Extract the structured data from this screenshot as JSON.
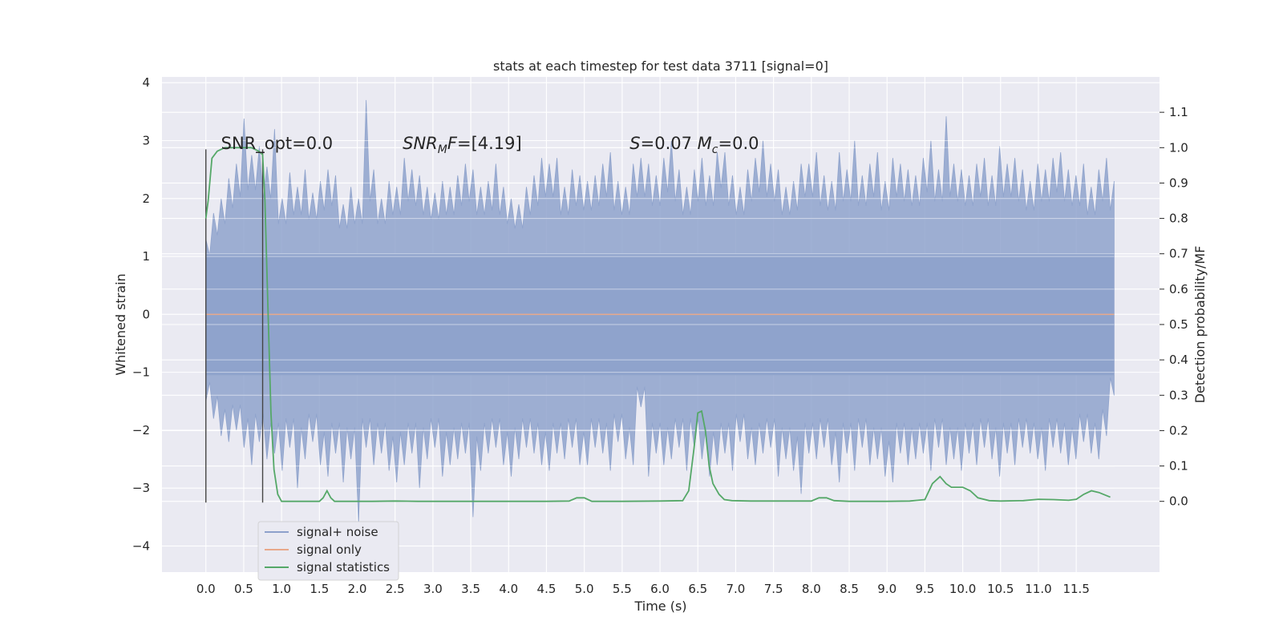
{
  "chart_data": {
    "type": "line",
    "title": "stats at each timestep for test data 3711 [signal=0]",
    "xlabel": "Time (s)",
    "ylabel_left": "Whitened strain",
    "ylabel_right": "Detection probability/MF",
    "xlim": [
      -0.58,
      12.6
    ],
    "ylim_left": [
      -4.45,
      4.1
    ],
    "ylim_right": [
      -0.2,
      1.2
    ],
    "x_ticks": [
      "0.0",
      "0.5",
      "1.0",
      "1.5",
      "2.0",
      "2.5",
      "3.0",
      "3.5",
      "4.0",
      "4.5",
      "5.0",
      "5.5",
      "6.0",
      "6.5",
      "7.0",
      "7.5",
      "8.0",
      "8.5",
      "9.0",
      "9.5",
      "10.0",
      "10.5",
      "11.0",
      "11.5"
    ],
    "y_ticks_left": [
      "4",
      "3",
      "2",
      "1",
      "0",
      "−1",
      "−2",
      "−3",
      "−4"
    ],
    "y_ticks_right": [
      "1.1",
      "1.0",
      "0.9",
      "0.8",
      "0.7",
      "0.6",
      "0.5",
      "0.4",
      "0.3",
      "0.2",
      "0.1",
      "0.0"
    ],
    "grid": true,
    "legend_position": "lower-left",
    "annotations": [
      {
        "text": "SNR_opt=0.0",
        "x": 0.2,
        "y": 2.95
      },
      {
        "text": "SNR_MF=[4.19]",
        "x": 2.6,
        "y": 2.95
      },
      {
        "text": "S=0.07   M_c=0.0",
        "x": 5.6,
        "y": 2.95
      }
    ],
    "vlines": [
      {
        "x": 0.0,
        "ymin": -3.25,
        "ymax": 2.85
      },
      {
        "x": 0.75,
        "ymin": -3.25,
        "ymax": 2.85
      }
    ],
    "noise_band": {
      "name": "signal+ noise",
      "x_range": [
        0.0,
        12.0
      ],
      "core_high": 1.05,
      "core_low": -1.05,
      "upper_envelope": [
        1.3,
        1.75,
        2.0,
        2.35,
        2.6,
        3.38,
        2.75,
        2.9,
        2.55,
        3.2,
        2.0,
        2.45,
        2.2,
        2.5,
        2.1,
        2.3,
        2.5,
        2.4,
        1.9,
        2.2,
        2.0,
        3.7,
        2.5,
        2.0,
        2.3,
        2.2,
        2.7,
        2.5,
        2.4,
        2.2,
        2.1,
        2.3,
        2.2,
        2.4,
        2.6,
        2.5,
        2.2,
        2.3,
        2.6,
        2.2,
        2.0,
        1.9,
        2.2,
        2.4,
        2.7,
        2.6,
        2.7,
        2.2,
        2.5,
        2.4,
        2.3,
        2.4,
        2.6,
        2.8,
        2.3,
        2.2,
        2.6,
        2.7,
        2.6,
        2.4,
        2.7,
        3.0,
        2.5,
        2.2,
        2.5,
        2.7,
        2.4,
        2.8,
        2.8,
        2.4,
        2.2,
        2.5,
        2.7,
        3.0,
        2.6,
        2.5,
        2.2,
        2.3,
        2.6,
        2.6,
        2.8,
        2.4,
        2.3,
        2.8,
        2.5,
        3.0,
        2.4,
        2.6,
        2.8,
        2.3,
        2.7,
        2.6,
        2.5,
        2.4,
        2.7,
        3.0,
        2.5,
        3.42,
        2.6,
        2.5,
        2.4,
        2.6,
        2.7,
        2.4,
        2.9,
        2.6,
        2.7,
        2.5,
        2.3,
        2.6,
        2.5,
        2.7,
        2.8,
        2.5,
        2.4,
        2.6,
        2.2,
        2.5,
        2.7,
        2.3
      ],
      "lower_envelope": [
        -1.5,
        -1.8,
        -2.1,
        -2.2,
        -2.0,
        -2.3,
        -2.6,
        -2.2,
        -2.5,
        -2.4,
        -2.7,
        -2.3,
        -3.0,
        -2.5,
        -2.2,
        -2.6,
        -2.8,
        -2.4,
        -2.9,
        -2.5,
        -3.6,
        -2.3,
        -2.6,
        -2.4,
        -2.7,
        -2.9,
        -2.6,
        -2.4,
        -3.0,
        -2.5,
        -2.3,
        -2.8,
        -2.6,
        -2.5,
        -2.4,
        -3.5,
        -2.7,
        -2.4,
        -2.3,
        -2.6,
        -2.8,
        -2.5,
        -2.3,
        -2.4,
        -2.6,
        -2.7,
        -2.4,
        -2.5,
        -2.3,
        -2.6,
        -2.6,
        -2.3,
        -2.4,
        -2.7,
        -2.2,
        -2.5,
        -2.6,
        -1.6,
        -2.8,
        -2.4,
        -2.6,
        -2.5,
        -2.3,
        -2.7,
        -2.3,
        -2.5,
        -2.8,
        -2.6,
        -2.4,
        -2.7,
        -2.2,
        -2.5,
        -2.6,
        -2.4,
        -2.3,
        -2.8,
        -2.5,
        -2.7,
        -3.1,
        -2.4,
        -2.5,
        -2.3,
        -2.6,
        -2.9,
        -2.4,
        -2.7,
        -2.3,
        -2.6,
        -2.5,
        -2.8,
        -2.9,
        -2.4,
        -2.6,
        -2.5,
        -2.4,
        -2.7,
        -2.3,
        -2.6,
        -2.5,
        -2.7,
        -2.4,
        -2.6,
        -2.3,
        -2.5,
        -2.8,
        -2.4,
        -2.6,
        -2.3,
        -2.4,
        -2.5,
        -2.7,
        -2.3,
        -2.4,
        -2.6,
        -2.5,
        -2.2,
        -2.4,
        -2.5,
        -2.1,
        -1.4
      ]
    },
    "series": [
      {
        "name": "signal only",
        "x": [
          0.0,
          12.0
        ],
        "y": [
          0.0,
          0.0
        ]
      },
      {
        "name": "signal statistics",
        "axis": "right",
        "x": [
          0.0,
          0.03,
          0.08,
          0.15,
          0.25,
          0.35,
          0.5,
          0.6,
          0.7,
          0.75,
          0.78,
          0.82,
          0.86,
          0.9,
          0.95,
          1.0,
          1.1,
          1.2,
          1.3,
          1.4,
          1.5,
          1.55,
          1.6,
          1.65,
          1.7,
          1.78,
          1.9,
          2.0,
          2.2,
          2.5,
          2.8,
          3.0,
          3.5,
          4.0,
          4.5,
          4.8,
          4.9,
          5.0,
          5.1,
          5.5,
          6.0,
          6.3,
          6.38,
          6.45,
          6.5,
          6.55,
          6.6,
          6.65,
          6.7,
          6.78,
          6.85,
          6.95,
          7.2,
          7.5,
          8.0,
          8.1,
          8.2,
          8.3,
          8.5,
          9.0,
          9.3,
          9.5,
          9.6,
          9.7,
          9.78,
          9.85,
          9.9,
          10.0,
          10.1,
          10.2,
          10.35,
          10.5,
          10.8,
          11.0,
          11.2,
          11.4,
          11.5,
          11.6,
          11.7,
          11.8,
          11.95
        ],
        "y": [
          0.8,
          0.85,
          0.97,
          0.99,
          1.0,
          1.0,
          1.0,
          1.0,
          0.99,
          0.98,
          0.85,
          0.55,
          0.25,
          0.09,
          0.02,
          0.0,
          0.0,
          0.0,
          0.0,
          0.0,
          0.0,
          0.01,
          0.03,
          0.01,
          0.0,
          0.0,
          0.0,
          0.0,
          0.0,
          0.001,
          0.0,
          0.0,
          0.0,
          0.0,
          0.0,
          0.001,
          0.01,
          0.01,
          0.0,
          0.0,
          0.001,
          0.002,
          0.03,
          0.15,
          0.25,
          0.255,
          0.2,
          0.1,
          0.05,
          0.02,
          0.005,
          0.002,
          0.001,
          0.001,
          0.001,
          0.01,
          0.01,
          0.002,
          0.0,
          0.0,
          0.001,
          0.005,
          0.05,
          0.07,
          0.05,
          0.04,
          0.04,
          0.04,
          0.03,
          0.01,
          0.002,
          0.001,
          0.002,
          0.006,
          0.005,
          0.003,
          0.006,
          0.02,
          0.03,
          0.025,
          0.012
        ]
      }
    ]
  },
  "legend": {
    "entries": [
      {
        "label": "signal+ noise",
        "color": "#8da0cb"
      },
      {
        "label": "signal only",
        "color": "#e8a88a"
      },
      {
        "label": "signal statistics",
        "color": "#55a868"
      }
    ]
  },
  "colors": {
    "axes_bg": "#eaeaf2",
    "grid": "#ffffff",
    "noise": "#8fa3cc",
    "signal_only": "#e8a88a",
    "statistics": "#55a868",
    "vline": "#444444"
  }
}
